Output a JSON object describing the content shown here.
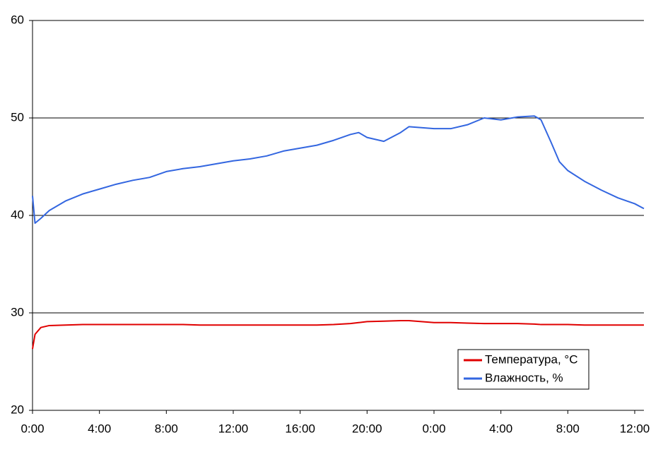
{
  "chart_data": {
    "type": "line",
    "x": [
      0,
      0.15,
      0.5,
      1,
      2,
      3,
      4,
      5,
      6,
      7,
      8,
      9,
      10,
      11,
      12,
      13,
      14,
      15,
      16,
      17,
      18,
      19,
      19.5,
      20,
      21,
      22,
      22.5,
      24,
      25,
      26,
      27,
      28,
      29,
      30,
      30.4,
      31,
      31.5,
      32,
      33,
      34,
      35,
      36,
      36.55
    ],
    "series": [
      {
        "name": "Температура, °C",
        "color": "#e00000",
        "values": [
          26.3,
          27.8,
          28.5,
          28.7,
          28.75,
          28.8,
          28.8,
          28.8,
          28.8,
          28.8,
          28.8,
          28.8,
          28.75,
          28.75,
          28.75,
          28.75,
          28.75,
          28.75,
          28.75,
          28.75,
          28.8,
          28.9,
          29.0,
          29.1,
          29.15,
          29.2,
          29.2,
          29.0,
          29.0,
          28.95,
          28.9,
          28.9,
          28.9,
          28.85,
          28.8,
          28.8,
          28.8,
          28.8,
          28.75,
          28.75,
          28.75,
          28.75,
          28.75
        ]
      },
      {
        "name": "Влажность, %",
        "color": "#3366e0",
        "values": [
          42,
          39.2,
          39.7,
          40.5,
          41.5,
          42.2,
          42.7,
          43.2,
          43.6,
          43.9,
          44.5,
          44.8,
          45.0,
          45.3,
          45.6,
          45.8,
          46.1,
          46.6,
          46.9,
          47.2,
          47.7,
          48.3,
          48.5,
          48.0,
          47.6,
          48.5,
          49.1,
          48.9,
          48.9,
          49.3,
          50.0,
          49.8,
          50.1,
          50.2,
          49.8,
          47.5,
          45.5,
          44.6,
          43.5,
          42.6,
          41.8,
          41.2,
          40.7
        ]
      }
    ],
    "xlim": [
      0,
      36.55
    ],
    "xticks": [
      {
        "value": 0,
        "label": "0:00"
      },
      {
        "value": 4,
        "label": "4:00"
      },
      {
        "value": 8,
        "label": "8:00"
      },
      {
        "value": 12,
        "label": "12:00"
      },
      {
        "value": 16,
        "label": "16:00"
      },
      {
        "value": 20,
        "label": "20:00"
      },
      {
        "value": 24,
        "label": "0:00"
      },
      {
        "value": 28,
        "label": "4:00"
      },
      {
        "value": 32,
        "label": "8:00"
      },
      {
        "value": 36,
        "label": "12:00"
      }
    ],
    "ylim": [
      20,
      60
    ],
    "yticks": [
      20,
      30,
      40,
      50,
      60
    ],
    "grid": true,
    "legend": "bottom-right"
  }
}
